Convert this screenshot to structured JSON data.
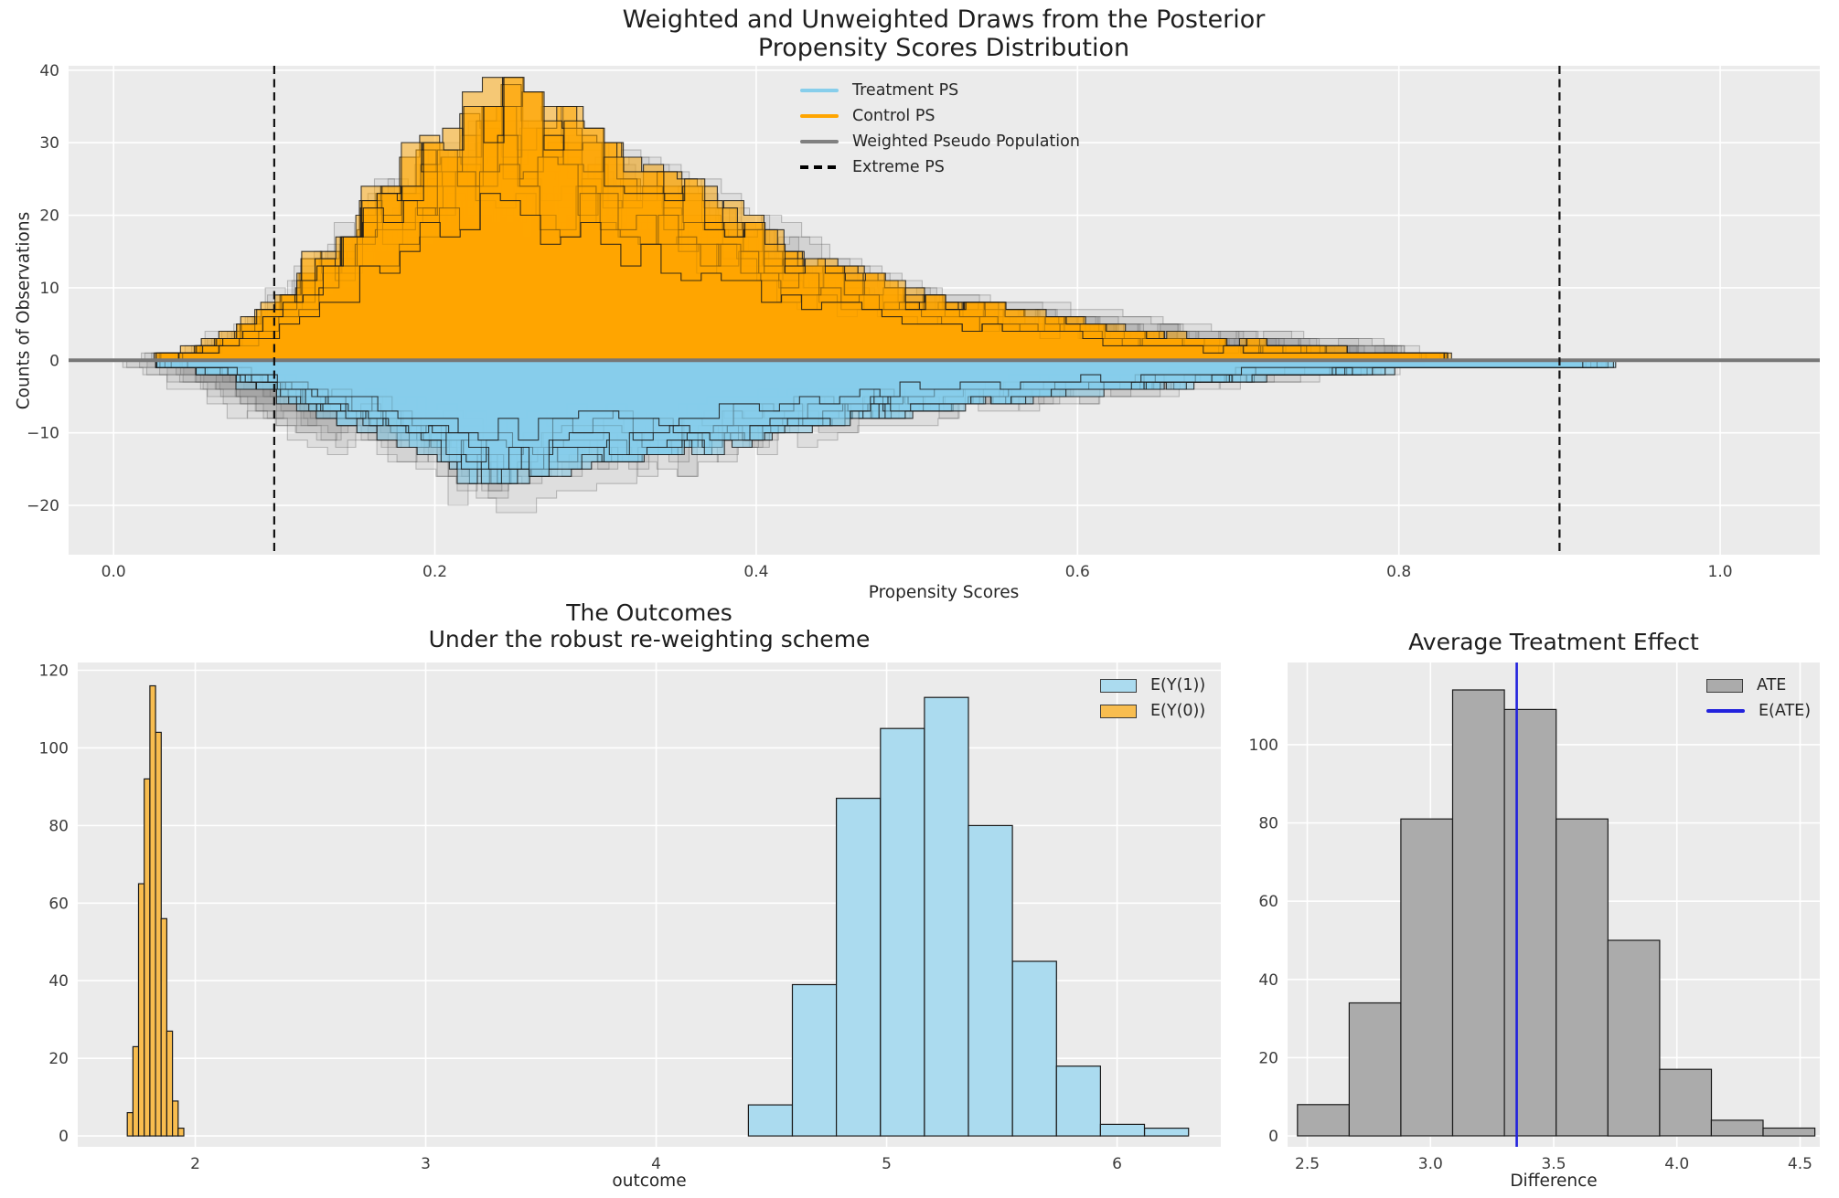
{
  "figure": {
    "colors": {
      "background": "#ffffff",
      "axes_background": "#ebebeb",
      "grid": "#ffffff",
      "title_text": "#1e1e1e",
      "tick_text": "#3c3c3c",
      "treatment_blue": "#87CEEB",
      "control_orange": "#FFA500",
      "weighted_gray": "#808080",
      "extreme_black": "#000000",
      "eate_blue": "#2222DD"
    }
  },
  "chart_data": [
    {
      "id": "posterior-propensity",
      "type": "mirrored-histogram-draws",
      "title_lines": [
        "Weighted and Unweighted Draws from the Posterior",
        "Propensity Scores Distribution"
      ],
      "xlabel": "Propensity Scores",
      "ylabel": "Counts of Observations",
      "xlim": [
        -0.028,
        1.062
      ],
      "ylim": [
        -26.8,
        40.6
      ],
      "grid": true,
      "xticks": [
        {
          "v": 0.0,
          "label": "0.0"
        },
        {
          "v": 0.2,
          "label": "0.2"
        },
        {
          "v": 0.4,
          "label": "0.4"
        },
        {
          "v": 0.6,
          "label": "0.6"
        },
        {
          "v": 0.8,
          "label": "0.8"
        },
        {
          "v": 1.0,
          "label": "1.0"
        }
      ],
      "yticks": [
        {
          "v": -20,
          "label": "−20"
        },
        {
          "v": -10,
          "label": "−10"
        },
        {
          "v": 0,
          "label": "0"
        },
        {
          "v": 10,
          "label": "10"
        },
        {
          "v": 20,
          "label": "20"
        },
        {
          "v": 30,
          "label": "30"
        },
        {
          "v": 40,
          "label": "40"
        }
      ],
      "zero_line": {
        "color": "#777777",
        "width": 4
      },
      "extreme_ps": {
        "values": [
          0.1,
          0.9
        ],
        "color": "#111111",
        "dash": "9 5.5",
        "width": 2.2
      },
      "hist_bin_width": 0.0125,
      "envelope_x_start": 0.025,
      "envelope_x_step": 0.025,
      "series": [
        {
          "name": "Weighted Pseudo Population (upper mirror)",
          "direction": 1,
          "draws": 12,
          "min_one": false,
          "fill": "rgba(130,130,130,0.12)",
          "stroke": "rgba(70,70,70,0.30)",
          "envelope": [
            0.5,
            2,
            5,
            10,
            15,
            21,
            26,
            30,
            33,
            32,
            30,
            29,
            27,
            25,
            22,
            19,
            16,
            13,
            11,
            10,
            9,
            8,
            7.5,
            7,
            6,
            5,
            4.5,
            4,
            3.5,
            3,
            2.5
          ]
        },
        {
          "name": "Weighted Pseudo Population (lower mirror)",
          "direction": -1,
          "draws": 12,
          "min_one": false,
          "fill": "rgba(130,130,130,0.12)",
          "stroke": "rgba(70,70,70,0.30)",
          "envelope": [
            2,
            5,
            8,
            11,
            12,
            13,
            15,
            18,
            21,
            19,
            17,
            17,
            16,
            14,
            13,
            12,
            10,
            9,
            8.5,
            8,
            7,
            6.5,
            6,
            5.5,
            5,
            4,
            3.5,
            3,
            2.5,
            2,
            1.5
          ]
        },
        {
          "name": "Control PS",
          "direction": 1,
          "draws": 16,
          "min_one": true,
          "fill": "rgba(255,165,0,0.50)",
          "stroke": "rgba(25,25,25,0.85)",
          "envelope": [
            0.5,
            2,
            5,
            10,
            16,
            22,
            28,
            33,
            38,
            37,
            33,
            28,
            26,
            24,
            21,
            17,
            14,
            12,
            10,
            9,
            8,
            7,
            6,
            5,
            4,
            3.5,
            3,
            2.5,
            2,
            1.5,
            1.2,
            1
          ]
        },
        {
          "name": "Treatment PS",
          "direction": -1,
          "draws": 16,
          "min_one": true,
          "fill": "rgba(135,206,235,0.55)",
          "stroke": "rgba(25,25,25,0.85)",
          "envelope": [
            0.5,
            1.5,
            3,
            5,
            7,
            9,
            11,
            14,
            17,
            16,
            14,
            14,
            13,
            13,
            11,
            10,
            9,
            8,
            7.5,
            7,
            6,
            5.5,
            5,
            4.5,
            4,
            3.5,
            3,
            2.5,
            2.2,
            2,
            1.5,
            1.2,
            1,
            1,
            0.8,
            0.6
          ]
        }
      ],
      "legend": {
        "position": "upper-center",
        "items": [
          {
            "label": "Treatment PS",
            "kind": "line",
            "color": "#87CEEB"
          },
          {
            "label": "Control PS",
            "kind": "line",
            "color": "#FFA500"
          },
          {
            "label": "Weighted Pseudo Population",
            "kind": "line",
            "color": "#808080"
          },
          {
            "label": "Extreme PS",
            "kind": "dash",
            "color": "#000000"
          }
        ]
      }
    },
    {
      "id": "outcomes",
      "type": "bar",
      "title_lines": [
        "The Outcomes",
        "Under the robust re-weighting scheme"
      ],
      "xlabel": "outcome",
      "xlim": [
        1.49,
        6.45
      ],
      "ylim": [
        -2.8,
        122
      ],
      "grid": true,
      "xticks": [
        {
          "v": 2,
          "label": "2"
        },
        {
          "v": 3,
          "label": "3"
        },
        {
          "v": 4,
          "label": "4"
        },
        {
          "v": 5,
          "label": "5"
        },
        {
          "v": 6,
          "label": "6"
        }
      ],
      "yticks": [
        {
          "v": 0,
          "label": "0"
        },
        {
          "v": 20,
          "label": "20"
        },
        {
          "v": 40,
          "label": "40"
        },
        {
          "v": 60,
          "label": "60"
        },
        {
          "v": 80,
          "label": "80"
        },
        {
          "v": 100,
          "label": "100"
        },
        {
          "v": 120,
          "label": "120"
        }
      ],
      "series": [
        {
          "name": "E(Y(1))",
          "fill": "#ABDBEF",
          "stroke": "#1a1a1a",
          "bin_start": 4.4,
          "bin_width": 0.191,
          "values": [
            8,
            39,
            87,
            105,
            113,
            80,
            45,
            18,
            3,
            2
          ]
        },
        {
          "name": "E(Y(0))",
          "fill": "#F8BD4F",
          "stroke": "#1a1a1a",
          "bin_start": 1.705,
          "bin_width": 0.0245,
          "values": [
            6,
            23,
            65,
            92,
            116,
            104,
            56,
            27,
            9,
            2
          ]
        }
      ],
      "legend": {
        "position": "upper-right",
        "items": [
          {
            "label": "E(Y(1))",
            "kind": "patch",
            "color": "#ABDBEF"
          },
          {
            "label": "E(Y(0))",
            "kind": "patch",
            "color": "#F8BD4F"
          }
        ]
      }
    },
    {
      "id": "average-treatment-effect",
      "type": "bar",
      "title_lines": [
        "Average Treatment Effect"
      ],
      "xlabel": "Difference",
      "xlim": [
        2.42,
        4.58
      ],
      "ylim": [
        -2.8,
        121
      ],
      "grid": true,
      "xticks": [
        {
          "v": 2.5,
          "label": "2.5"
        },
        {
          "v": 3.0,
          "label": "3.0"
        },
        {
          "v": 3.5,
          "label": "3.5"
        },
        {
          "v": 4.0,
          "label": "4.0"
        },
        {
          "v": 4.5,
          "label": "4.5"
        }
      ],
      "yticks": [
        {
          "v": 0,
          "label": "0"
        },
        {
          "v": 20,
          "label": "20"
        },
        {
          "v": 40,
          "label": "40"
        },
        {
          "v": 60,
          "label": "60"
        },
        {
          "v": 80,
          "label": "80"
        },
        {
          "v": 100,
          "label": "100"
        }
      ],
      "series": [
        {
          "name": "ATE",
          "fill": "#ABABAB",
          "stroke": "#1a1a1a",
          "bin_start": 2.46,
          "bin_width": 0.21,
          "values": [
            8,
            34,
            81,
            114,
            109,
            81,
            50,
            17,
            4,
            2
          ]
        }
      ],
      "vline": {
        "label": "E(ATE)",
        "x": 3.35,
        "color": "#2222DD",
        "width": 2.6
      },
      "legend": {
        "position": "upper-right",
        "items": [
          {
            "label": "ATE",
            "kind": "patch",
            "color": "#ABABAB"
          },
          {
            "label": "E(ATE)",
            "kind": "line",
            "color": "#2222DD"
          }
        ]
      }
    }
  ]
}
